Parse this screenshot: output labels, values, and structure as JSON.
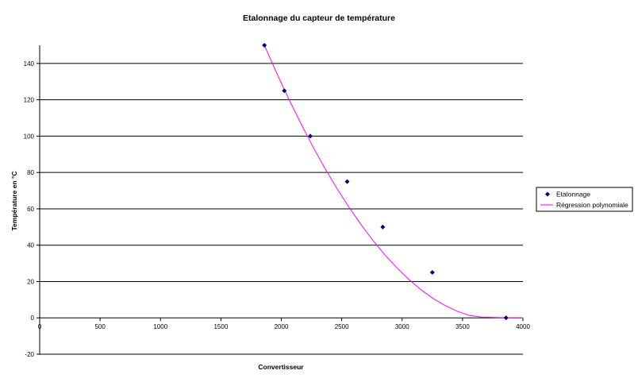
{
  "chart_data": {
    "type": "scatter",
    "title": "Etalonnage du capteur de température",
    "xlabel": "Convertisseur",
    "ylabel": "Température en °C",
    "xlim": [
      0,
      4000
    ],
    "ylim": [
      -20,
      150
    ],
    "x_ticks": [
      0,
      500,
      1000,
      1500,
      2000,
      2500,
      3000,
      3500,
      4000
    ],
    "y_ticks": [
      -20,
      0,
      20,
      40,
      60,
      80,
      100,
      120,
      140
    ],
    "grid": "horizontal",
    "legend_position": "right",
    "series": [
      {
        "name": "Etalonnage",
        "type": "scatter",
        "color": "#00006e",
        "marker": "diamond",
        "x": [
          1860,
          2025,
          2240,
          2545,
          2840,
          3250,
          3860
        ],
        "y": [
          150,
          125,
          100,
          75,
          50,
          25,
          0
        ]
      },
      {
        "name": "Régression polynomiale",
        "type": "line",
        "color": "#ff00ff",
        "x": [
          1860,
          1960,
          2060,
          2160,
          2260,
          2360,
          2460,
          2560,
          2660,
          2760,
          2860,
          2960,
          3060,
          3160,
          3260,
          3360,
          3460,
          3560,
          3660,
          3760,
          3860,
          3960,
          4000
        ],
        "y": [
          150,
          135,
          120.7,
          107.2,
          94.4,
          82.5,
          71.3,
          60.9,
          51.3,
          42.5,
          34.5,
          27.3,
          20.9,
          15.3,
          10.5,
          6.6,
          3.5,
          1.3,
          0.4,
          0.2,
          0.1,
          0,
          0
        ]
      }
    ]
  }
}
